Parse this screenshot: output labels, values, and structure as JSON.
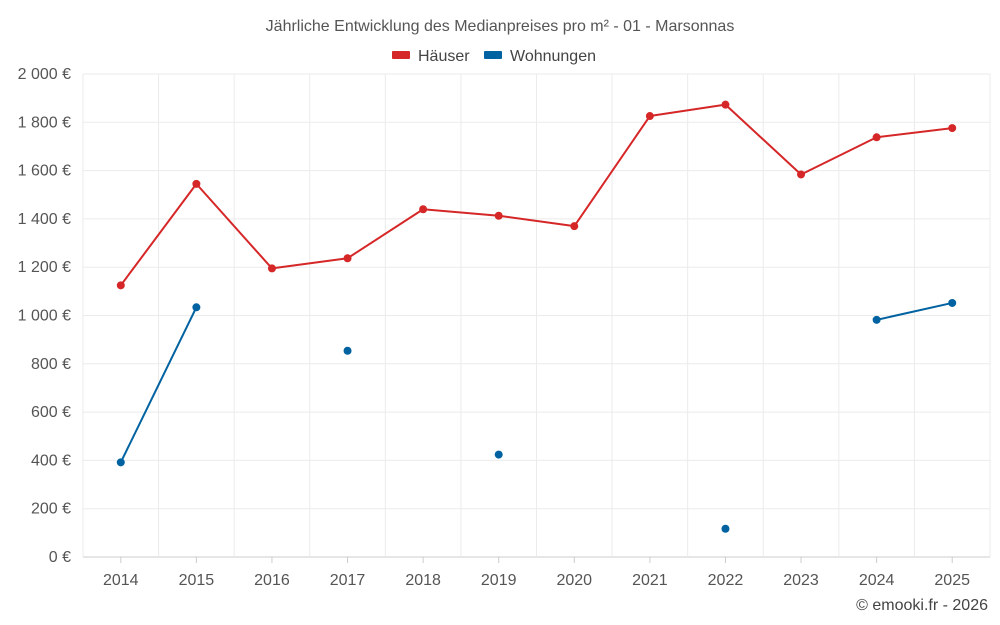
{
  "chart_data": {
    "type": "line",
    "title": "Jährliche Entwicklung des Medianpreises pro m² - 01 - Marsonnas",
    "categories": [
      "2014",
      "2015",
      "2016",
      "2017",
      "2018",
      "2019",
      "2020",
      "2021",
      "2022",
      "2023",
      "2024",
      "2025"
    ],
    "ylim": [
      0,
      2000
    ],
    "y_ticks": [
      0,
      200,
      400,
      600,
      800,
      1000,
      1200,
      1400,
      1600,
      1800,
      2000
    ],
    "y_tick_labels": [
      "0 €",
      "200 €",
      "400 €",
      "600 €",
      "800 €",
      "1 000 €",
      "1 200 €",
      "1 400 €",
      "1 600 €",
      "1 800 €",
      "2 000 €"
    ],
    "legend_position": "top-center",
    "grid": true,
    "series": [
      {
        "name": "Häuser",
        "color": "#d62728",
        "values": [
          1125,
          1545,
          1195,
          1237,
          1440,
          1413,
          1370,
          1826,
          1873,
          1584,
          1738,
          1776
        ]
      },
      {
        "name": "Wohnungen",
        "color": "#0062a0",
        "values": [
          392,
          1034,
          null,
          854,
          null,
          424,
          null,
          null,
          117,
          null,
          982,
          1052
        ]
      }
    ]
  },
  "credit": "© emooki.fr - 2026"
}
